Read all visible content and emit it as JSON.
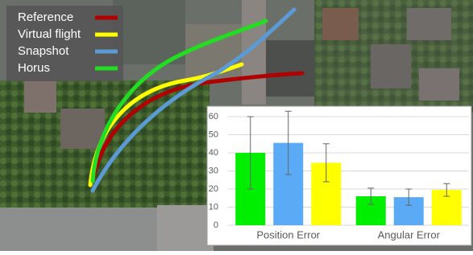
{
  "legend": [
    {
      "label": "Reference",
      "color": "#b00000"
    },
    {
      "label": "Virtual flight",
      "color": "#ffff00"
    },
    {
      "label": "Snapshot",
      "color": "#5b9bd5"
    },
    {
      "label": "Horus",
      "color": "#22dd22"
    }
  ],
  "chart_data": {
    "type": "bar",
    "categories": [
      "Position Error",
      "Angular Error"
    ],
    "series": [
      {
        "color": "#00ee00",
        "values": [
          40,
          16
        ],
        "errors": [
          20,
          4.5
        ]
      },
      {
        "color": "#5aaaf5",
        "values": [
          45.5,
          15.5
        ],
        "errors": [
          17.5,
          4.5
        ]
      },
      {
        "color": "#ffff00",
        "values": [
          34.5,
          19.5
        ],
        "errors": [
          10.5,
          3.5
        ]
      }
    ],
    "ylim": [
      0,
      60
    ],
    "yticks": [
      0,
      10,
      20,
      30,
      40,
      50,
      60
    ],
    "grid": true
  }
}
